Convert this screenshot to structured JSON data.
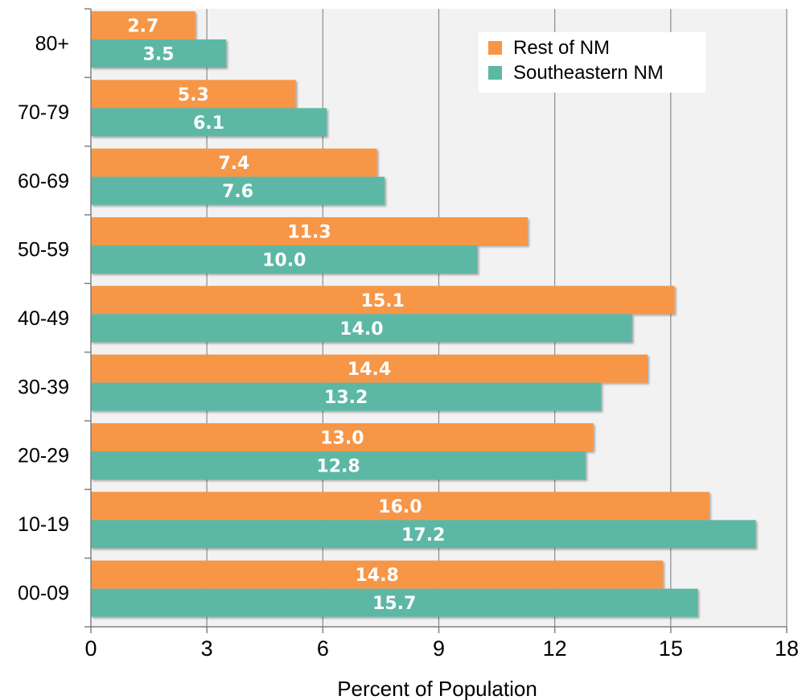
{
  "chart_data": {
    "type": "bar",
    "orientation": "horizontal",
    "categories": [
      "00-09",
      "10-19",
      "20-29",
      "30-39",
      "40-49",
      "50-59",
      "60-69",
      "70-79",
      "80+"
    ],
    "series": [
      {
        "name": "Rest of NM",
        "color": "#F79646",
        "values": [
          14.8,
          16.0,
          13.0,
          14.4,
          15.1,
          11.3,
          7.4,
          5.3,
          2.7
        ]
      },
      {
        "name": "Southeastern NM",
        "color": "#5BB8A5",
        "values": [
          15.7,
          17.2,
          12.8,
          13.2,
          14.0,
          10.0,
          7.6,
          6.1,
          3.5
        ]
      }
    ],
    "xlabel": "Percent of Population",
    "ylabel": "",
    "xlim": [
      0,
      18
    ],
    "xticks": [
      0,
      3,
      6,
      9,
      12,
      15,
      18
    ],
    "grid": "vertical",
    "legend_position": "top-right",
    "data_labels": true,
    "colors": {
      "plot_background": "#F2F2F2",
      "gridline": "#8C8C8C",
      "axis": "#808080"
    }
  }
}
